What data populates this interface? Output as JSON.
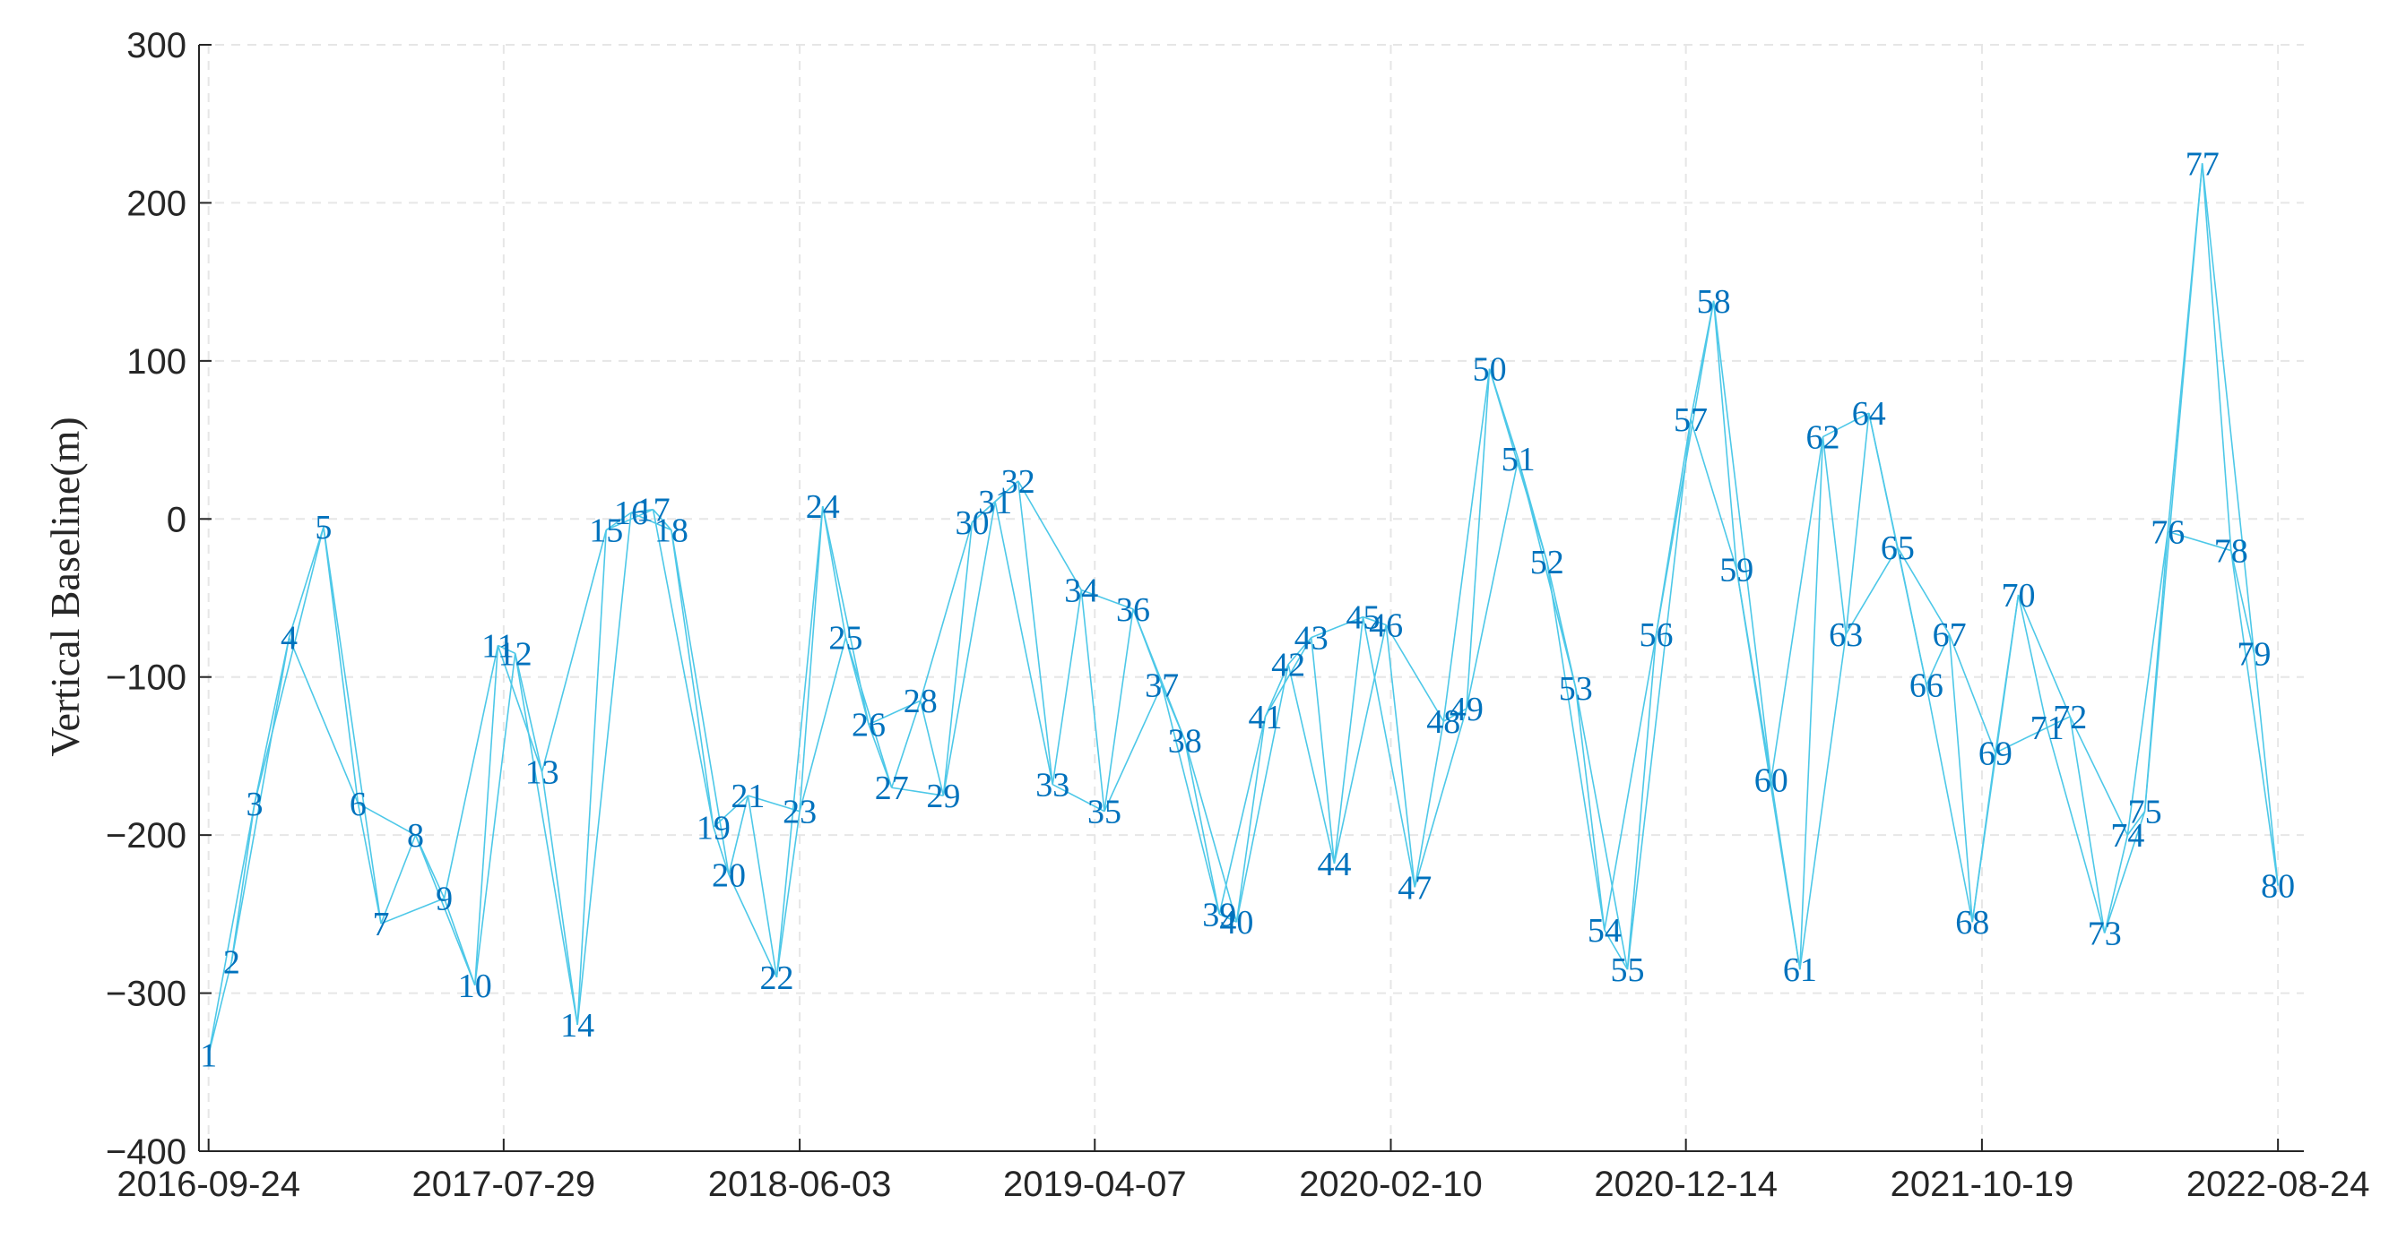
{
  "chart_data": {
    "type": "network",
    "title": "",
    "xlabel": "",
    "ylabel": "Vertical Baseline(m)",
    "xlim": [
      "2016-09-14",
      "2022-09-20"
    ],
    "ylim": [
      -400,
      300
    ],
    "grid": true,
    "x_ticks": [
      "2016-09-24",
      "2017-07-29",
      "2018-06-03",
      "2019-04-07",
      "2020-02-10",
      "2020-12-14",
      "2021-10-19",
      "2022-08-24"
    ],
    "y_ticks": [
      300,
      200,
      100,
      0,
      -100,
      -200,
      -300,
      -400
    ],
    "colors": {
      "edge": "#4DC8E8",
      "label": "#0072BD",
      "axis": "#262626",
      "grid": "#E6E6E6"
    },
    "points": [
      {
        "id": "1",
        "date": "2016-09-24",
        "baseline": -339
      },
      {
        "id": "2",
        "date": "2016-10-18",
        "baseline": -280
      },
      {
        "id": "3",
        "date": "2016-11-11",
        "baseline": -180
      },
      {
        "id": "4",
        "date": "2016-12-17",
        "baseline": -75
      },
      {
        "id": "5",
        "date": "2017-01-22",
        "baseline": -5
      },
      {
        "id": "6",
        "date": "2017-02-27",
        "baseline": -180
      },
      {
        "id": "7",
        "date": "2017-03-23",
        "baseline": -256
      },
      {
        "id": "8",
        "date": "2017-04-28",
        "baseline": -200
      },
      {
        "id": "9",
        "date": "2017-05-28",
        "baseline": -240
      },
      {
        "id": "10",
        "date": "2017-06-29",
        "baseline": -295
      },
      {
        "id": "11",
        "date": "2017-07-23",
        "baseline": -80
      },
      {
        "id": "12",
        "date": "2017-08-10",
        "baseline": -85
      },
      {
        "id": "13",
        "date": "2017-09-07",
        "baseline": -160
      },
      {
        "id": "14",
        "date": "2017-10-14",
        "baseline": -320
      },
      {
        "id": "15",
        "date": "2017-11-13",
        "baseline": -7
      },
      {
        "id": "16",
        "date": "2017-12-09",
        "baseline": 4
      },
      {
        "id": "17",
        "date": "2018-01-01",
        "baseline": 6
      },
      {
        "id": "18",
        "date": "2018-01-20",
        "baseline": -7
      },
      {
        "id": "19",
        "date": "2018-03-05",
        "baseline": -195
      },
      {
        "id": "20",
        "date": "2018-03-21",
        "baseline": -225
      },
      {
        "id": "21",
        "date": "2018-04-10",
        "baseline": -175
      },
      {
        "id": "22",
        "date": "2018-05-10",
        "baseline": -290
      },
      {
        "id": "23",
        "date": "2018-06-03",
        "baseline": -185
      },
      {
        "id": "24",
        "date": "2018-06-27",
        "baseline": 8
      },
      {
        "id": "25",
        "date": "2018-07-21",
        "baseline": -75
      },
      {
        "id": "26",
        "date": "2018-08-14",
        "baseline": -130
      },
      {
        "id": "27",
        "date": "2018-09-07",
        "baseline": -170
      },
      {
        "id": "28",
        "date": "2018-10-07",
        "baseline": -115
      },
      {
        "id": "29",
        "date": "2018-10-31",
        "baseline": -175
      },
      {
        "id": "30",
        "date": "2018-11-30",
        "baseline": -2
      },
      {
        "id": "31",
        "date": "2018-12-24",
        "baseline": 11
      },
      {
        "id": "32",
        "date": "2019-01-17",
        "baseline": 24
      },
      {
        "id": "33",
        "date": "2019-02-22",
        "baseline": -168
      },
      {
        "id": "34",
        "date": "2019-03-24",
        "baseline": -45
      },
      {
        "id": "35",
        "date": "2019-04-17",
        "baseline": -185
      },
      {
        "id": "36",
        "date": "2019-05-17",
        "baseline": -57
      },
      {
        "id": "37",
        "date": "2019-06-16",
        "baseline": -105
      },
      {
        "id": "38",
        "date": "2019-07-10",
        "baseline": -140
      },
      {
        "id": "39",
        "date": "2019-08-15",
        "baseline": -250
      },
      {
        "id": "40",
        "date": "2019-09-02",
        "baseline": -255
      },
      {
        "id": "41",
        "date": "2019-10-02",
        "baseline": -125
      },
      {
        "id": "42",
        "date": "2019-10-26",
        "baseline": -92
      },
      {
        "id": "43",
        "date": "2019-11-19",
        "baseline": -75
      },
      {
        "id": "44",
        "date": "2019-12-13",
        "baseline": -218
      },
      {
        "id": "45",
        "date": "2020-01-12",
        "baseline": -62
      },
      {
        "id": "46",
        "date": "2020-02-05",
        "baseline": -67
      },
      {
        "id": "47",
        "date": "2020-03-06",
        "baseline": -233
      },
      {
        "id": "48",
        "date": "2020-04-05",
        "baseline": -128
      },
      {
        "id": "49",
        "date": "2020-04-29",
        "baseline": -120
      },
      {
        "id": "50",
        "date": "2020-05-23",
        "baseline": 95
      },
      {
        "id": "51",
        "date": "2020-06-22",
        "baseline": 38
      },
      {
        "id": "52",
        "date": "2020-07-22",
        "baseline": -27
      },
      {
        "id": "53",
        "date": "2020-08-21",
        "baseline": -107
      },
      {
        "id": "54",
        "date": "2020-09-20",
        "baseline": -260
      },
      {
        "id": "55",
        "date": "2020-10-14",
        "baseline": -285
      },
      {
        "id": "56",
        "date": "2020-11-13",
        "baseline": -73
      },
      {
        "id": "57",
        "date": "2020-12-19",
        "baseline": 63
      },
      {
        "id": "58",
        "date": "2021-01-12",
        "baseline": 138
      },
      {
        "id": "59",
        "date": "2021-02-05",
        "baseline": -32
      },
      {
        "id": "60",
        "date": "2021-03-13",
        "baseline": -165
      },
      {
        "id": "61",
        "date": "2021-04-12",
        "baseline": -285
      },
      {
        "id": "62",
        "date": "2021-05-06",
        "baseline": 52
      },
      {
        "id": "63",
        "date": "2021-05-30",
        "baseline": -73
      },
      {
        "id": "64",
        "date": "2021-06-23",
        "baseline": 67
      },
      {
        "id": "65",
        "date": "2021-07-23",
        "baseline": -18
      },
      {
        "id": "66",
        "date": "2021-08-22",
        "baseline": -105
      },
      {
        "id": "67",
        "date": "2021-09-15",
        "baseline": -73
      },
      {
        "id": "68",
        "date": "2021-10-09",
        "baseline": -255
      },
      {
        "id": "69",
        "date": "2021-11-02",
        "baseline": -148
      },
      {
        "id": "70",
        "date": "2021-11-26",
        "baseline": -48
      },
      {
        "id": "71",
        "date": "2021-12-26",
        "baseline": -132
      },
      {
        "id": "72",
        "date": "2022-01-19",
        "baseline": -125
      },
      {
        "id": "73",
        "date": "2022-02-24",
        "baseline": -262
      },
      {
        "id": "74",
        "date": "2022-03-20",
        "baseline": -200
      },
      {
        "id": "75",
        "date": "2022-04-07",
        "baseline": -185
      },
      {
        "id": "76",
        "date": "2022-05-01",
        "baseline": -8
      },
      {
        "id": "77",
        "date": "2022-06-06",
        "baseline": 225
      },
      {
        "id": "78",
        "date": "2022-07-06",
        "baseline": -20
      },
      {
        "id": "79",
        "date": "2022-07-30",
        "baseline": -85
      },
      {
        "id": "80",
        "date": "2022-08-24",
        "baseline": -232
      }
    ],
    "edges": [
      [
        "1",
        "2"
      ],
      [
        "1",
        "3"
      ],
      [
        "2",
        "3"
      ],
      [
        "2",
        "4"
      ],
      [
        "3",
        "4"
      ],
      [
        "3",
        "5"
      ],
      [
        "4",
        "5"
      ],
      [
        "4",
        "6"
      ],
      [
        "5",
        "6"
      ],
      [
        "5",
        "7"
      ],
      [
        "6",
        "7"
      ],
      [
        "6",
        "8"
      ],
      [
        "7",
        "8"
      ],
      [
        "7",
        "9"
      ],
      [
        "8",
        "9"
      ],
      [
        "8",
        "10"
      ],
      [
        "9",
        "10"
      ],
      [
        "9",
        "11"
      ],
      [
        "10",
        "11"
      ],
      [
        "10",
        "12"
      ],
      [
        "11",
        "12"
      ],
      [
        "11",
        "13"
      ],
      [
        "12",
        "13"
      ],
      [
        "12",
        "14"
      ],
      [
        "13",
        "14"
      ],
      [
        "13",
        "15"
      ],
      [
        "14",
        "15"
      ],
      [
        "14",
        "16"
      ],
      [
        "15",
        "16"
      ],
      [
        "15",
        "17"
      ],
      [
        "16",
        "17"
      ],
      [
        "16",
        "18"
      ],
      [
        "17",
        "18"
      ],
      [
        "17",
        "19"
      ],
      [
        "18",
        "19"
      ],
      [
        "18",
        "20"
      ],
      [
        "19",
        "20"
      ],
      [
        "19",
        "21"
      ],
      [
        "20",
        "21"
      ],
      [
        "20",
        "22"
      ],
      [
        "21",
        "22"
      ],
      [
        "21",
        "23"
      ],
      [
        "22",
        "23"
      ],
      [
        "22",
        "24"
      ],
      [
        "23",
        "24"
      ],
      [
        "23",
        "25"
      ],
      [
        "24",
        "25"
      ],
      [
        "24",
        "26"
      ],
      [
        "25",
        "26"
      ],
      [
        "25",
        "27"
      ],
      [
        "26",
        "27"
      ],
      [
        "26",
        "28"
      ],
      [
        "27",
        "28"
      ],
      [
        "27",
        "29"
      ],
      [
        "28",
        "29"
      ],
      [
        "28",
        "30"
      ],
      [
        "29",
        "30"
      ],
      [
        "29",
        "31"
      ],
      [
        "30",
        "31"
      ],
      [
        "30",
        "32"
      ],
      [
        "31",
        "32"
      ],
      [
        "31",
        "33"
      ],
      [
        "32",
        "33"
      ],
      [
        "32",
        "34"
      ],
      [
        "33",
        "34"
      ],
      [
        "33",
        "35"
      ],
      [
        "34",
        "35"
      ],
      [
        "34",
        "36"
      ],
      [
        "35",
        "36"
      ],
      [
        "35",
        "37"
      ],
      [
        "36",
        "37"
      ],
      [
        "36",
        "38"
      ],
      [
        "37",
        "38"
      ],
      [
        "37",
        "39"
      ],
      [
        "38",
        "39"
      ],
      [
        "38",
        "40"
      ],
      [
        "39",
        "40"
      ],
      [
        "39",
        "41"
      ],
      [
        "40",
        "41"
      ],
      [
        "40",
        "42"
      ],
      [
        "41",
        "42"
      ],
      [
        "41",
        "43"
      ],
      [
        "42",
        "43"
      ],
      [
        "42",
        "44"
      ],
      [
        "43",
        "44"
      ],
      [
        "43",
        "45"
      ],
      [
        "44",
        "45"
      ],
      [
        "44",
        "46"
      ],
      [
        "45",
        "46"
      ],
      [
        "45",
        "47"
      ],
      [
        "46",
        "47"
      ],
      [
        "46",
        "48"
      ],
      [
        "47",
        "48"
      ],
      [
        "47",
        "49"
      ],
      [
        "48",
        "49"
      ],
      [
        "48",
        "50"
      ],
      [
        "49",
        "50"
      ],
      [
        "49",
        "51"
      ],
      [
        "50",
        "51"
      ],
      [
        "50",
        "52"
      ],
      [
        "51",
        "52"
      ],
      [
        "51",
        "53"
      ],
      [
        "52",
        "53"
      ],
      [
        "52",
        "54"
      ],
      [
        "53",
        "54"
      ],
      [
        "53",
        "55"
      ],
      [
        "54",
        "55"
      ],
      [
        "54",
        "56"
      ],
      [
        "55",
        "56"
      ],
      [
        "55",
        "57"
      ],
      [
        "56",
        "57"
      ],
      [
        "56",
        "58"
      ],
      [
        "57",
        "58"
      ],
      [
        "57",
        "59"
      ],
      [
        "58",
        "59"
      ],
      [
        "58",
        "60"
      ],
      [
        "59",
        "60"
      ],
      [
        "59",
        "61"
      ],
      [
        "60",
        "61"
      ],
      [
        "60",
        "62"
      ],
      [
        "61",
        "62"
      ],
      [
        "61",
        "63"
      ],
      [
        "62",
        "63"
      ],
      [
        "62",
        "64"
      ],
      [
        "63",
        "64"
      ],
      [
        "63",
        "65"
      ],
      [
        "64",
        "65"
      ],
      [
        "64",
        "66"
      ],
      [
        "65",
        "66"
      ],
      [
        "65",
        "67"
      ],
      [
        "66",
        "67"
      ],
      [
        "66",
        "68"
      ],
      [
        "67",
        "68"
      ],
      [
        "67",
        "69"
      ],
      [
        "68",
        "69"
      ],
      [
        "68",
        "70"
      ],
      [
        "69",
        "70"
      ],
      [
        "69",
        "71"
      ],
      [
        "70",
        "71"
      ],
      [
        "70",
        "72"
      ],
      [
        "71",
        "72"
      ],
      [
        "71",
        "73"
      ],
      [
        "72",
        "73"
      ],
      [
        "72",
        "74"
      ],
      [
        "73",
        "74"
      ],
      [
        "73",
        "75"
      ],
      [
        "74",
        "75"
      ],
      [
        "74",
        "76"
      ],
      [
        "75",
        "76"
      ],
      [
        "75",
        "77"
      ],
      [
        "76",
        "77"
      ],
      [
        "76",
        "78"
      ],
      [
        "77",
        "78"
      ],
      [
        "77",
        "79"
      ],
      [
        "78",
        "79"
      ],
      [
        "78",
        "80"
      ],
      [
        "79",
        "80"
      ]
    ]
  }
}
